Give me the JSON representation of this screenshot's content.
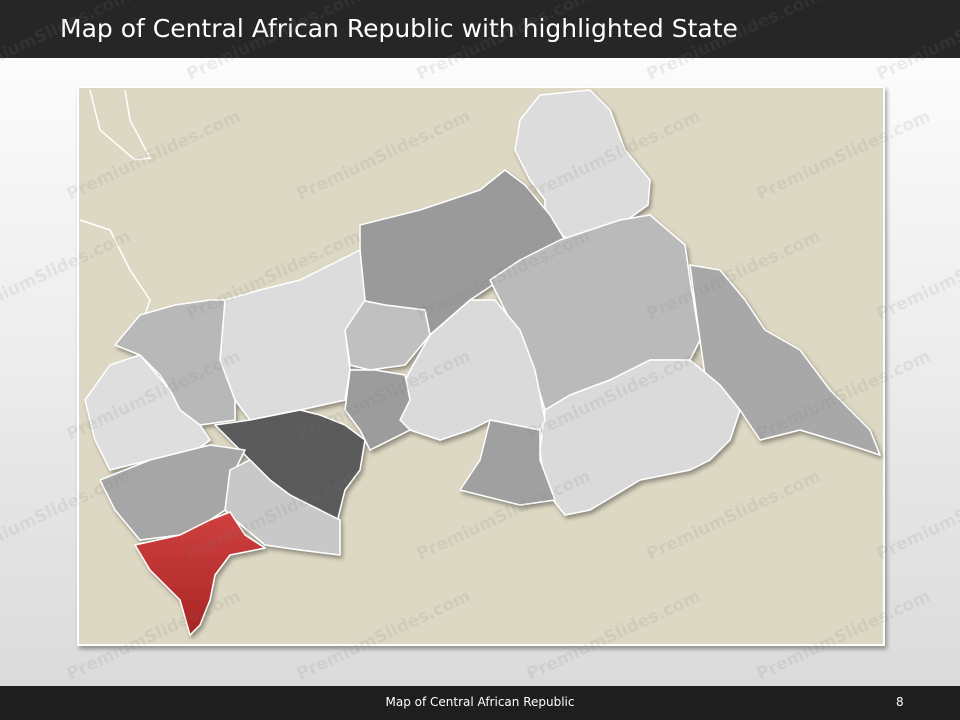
{
  "header": {
    "title": "Map of Central African Republic with highlighted State"
  },
  "footer": {
    "caption": "Map of Central African Republic",
    "page": "8"
  },
  "watermark": "PremiumSlides.com"
}
